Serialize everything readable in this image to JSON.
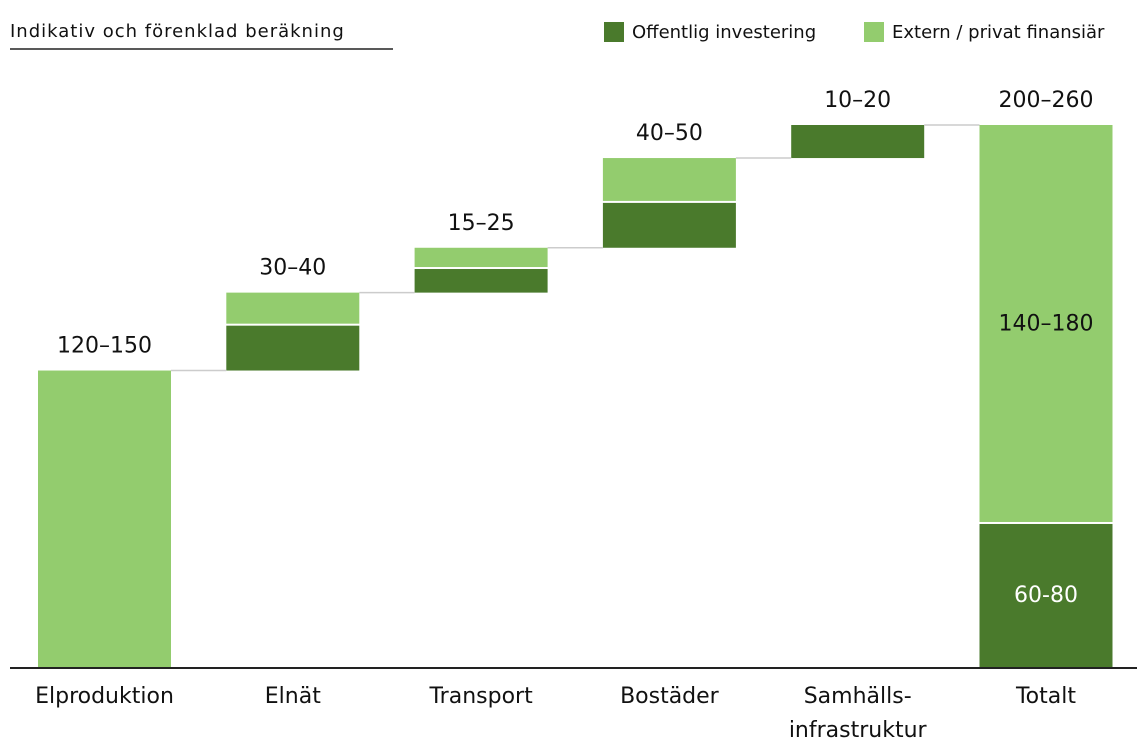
{
  "chart_data": {
    "type": "waterfall",
    "title": "Indikativ och förenklad beräkning",
    "categories": [
      "Elproduktion",
      "Elnät",
      "Transport",
      "Bostäder",
      "Samhälls-\ninfrastruktur",
      "Totalt"
    ],
    "is_total": [
      false,
      false,
      false,
      false,
      false,
      true
    ],
    "range_labels": [
      "120–150",
      "30–40",
      "15–25",
      "40–50",
      "10–20",
      "200–260"
    ],
    "series": [
      {
        "name": "Offentlig investering",
        "color": "#4a7a2c",
        "values": [
          0,
          19,
          10,
          19,
          14,
          61
        ],
        "value_labels": [
          null,
          null,
          null,
          null,
          null,
          "60-80"
        ]
      },
      {
        "name": "Extern / privat finansiär",
        "color": "#93cc6e",
        "values": [
          126,
          14,
          9,
          19,
          0,
          169
        ],
        "value_labels": [
          null,
          null,
          null,
          null,
          null,
          "140–180"
        ]
      }
    ]
  }
}
